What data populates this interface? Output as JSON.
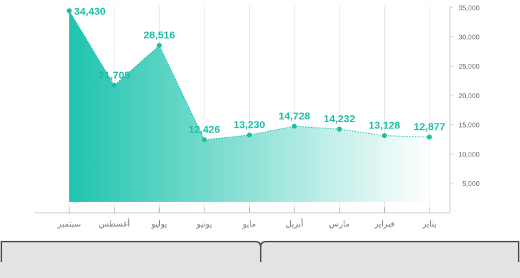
{
  "colors": {
    "accent": "#1bbfa8",
    "area_start": "#1fc4ae",
    "area_end": "#ffffff",
    "axis": "#cfcfcf",
    "tick_text": "#6f6f6f",
    "footer_bg": "#e3e3e4",
    "bracket": "#555555"
  },
  "chart_data": {
    "type": "area",
    "categories": [
      "سبتمبر",
      "أغسطس",
      "يوليو",
      "يونيو",
      "مايو",
      "أبريل",
      "مارس",
      "فبراير",
      "يناير"
    ],
    "values": [
      34430,
      21705,
      28516,
      12426,
      13230,
      14728,
      14232,
      13128,
      12877
    ],
    "value_labels": [
      "34,430",
      "21,705",
      "28,516",
      "12,426",
      "13,230",
      "14,728",
      "14,232",
      "13,128",
      "12,877"
    ],
    "y_ticks": [
      5000,
      10000,
      15000,
      20000,
      25000,
      30000,
      35000
    ],
    "y_tick_labels": [
      "5,000",
      "10,000",
      "15,000",
      "20,000",
      "25,000",
      "30,000",
      "35,000"
    ],
    "ylim": [
      0,
      35000
    ],
    "y_axis_side": "right",
    "grid": "vertical",
    "title": "",
    "xlabel": "",
    "ylabel": ""
  },
  "footer": {
    "title": ""
  }
}
